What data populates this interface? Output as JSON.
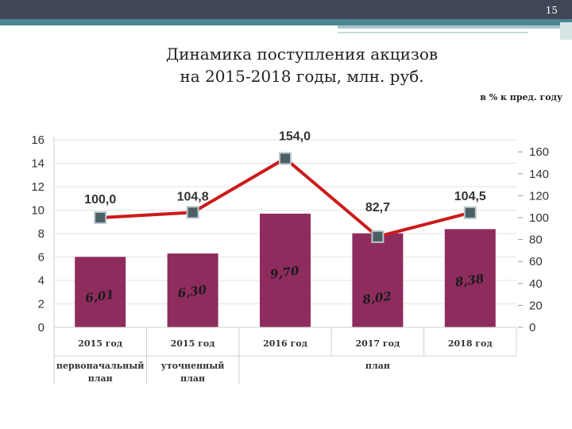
{
  "page": {
    "number": "15"
  },
  "header": {
    "title_line1": "Динамика поступления акцизов",
    "title_line2": "на 2015-2018 годы, млн. руб.",
    "subtitle": "в % к пред. году"
  },
  "colors": {
    "bar": "#8e2c5e",
    "line": "#cc1a1a",
    "marker": "#4c5f64"
  },
  "chart_data": {
    "type": "bar",
    "categories": [
      "2015 год",
      "2015 год",
      "2016 год",
      "2017 год",
      "2018 год"
    ],
    "groups": [
      {
        "label_lines": [
          "первоначальный",
          "план"
        ],
        "span": [
          0,
          0
        ]
      },
      {
        "label_lines": [
          "уточненный",
          "план"
        ],
        "span": [
          1,
          1
        ]
      },
      {
        "label_lines": [
          "план"
        ],
        "span": [
          2,
          4
        ]
      }
    ],
    "series": [
      {
        "type": "bar",
        "axis": "left",
        "values": [
          6.01,
          6.3,
          9.7,
          8.02,
          8.38
        ],
        "labels": [
          "6,01",
          "6,30",
          "9,70",
          "8,02",
          "8,38"
        ]
      },
      {
        "type": "line",
        "axis": "right",
        "values": [
          100.0,
          104.8,
          154.0,
          82.7,
          104.5
        ],
        "labels": [
          "100,0",
          "104,8",
          "154,0",
          "82,7",
          "104,5"
        ]
      }
    ],
    "left_axis": {
      "ylim": [
        0,
        16
      ],
      "ticks": [
        "0",
        "2",
        "4",
        "6",
        "8",
        "10",
        "12",
        "14",
        "16"
      ]
    },
    "right_axis": {
      "ylim": [
        0,
        171
      ],
      "ticks": [
        "0",
        "20",
        "40",
        "60",
        "80",
        "100",
        "120",
        "140",
        "160"
      ]
    }
  }
}
